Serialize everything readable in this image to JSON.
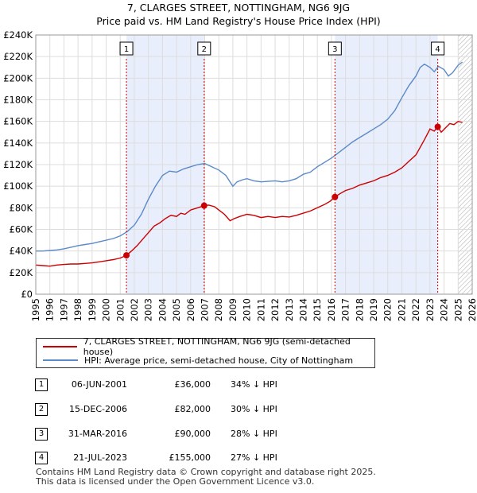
{
  "title": {
    "line1": "7, CLARGES STREET, NOTTINGHAM, NG6 9JG",
    "line2": "Price paid vs. HM Land Registry's House Price Index (HPI)"
  },
  "chart_data": {
    "type": "line",
    "ylim": [
      0,
      240000
    ],
    "xlim": [
      1995,
      2026
    ],
    "y_ticks": [
      0,
      20000,
      40000,
      60000,
      80000,
      100000,
      120000,
      140000,
      160000,
      180000,
      200000,
      220000,
      240000
    ],
    "y_tick_labels": [
      "£0",
      "£20K",
      "£40K",
      "£60K",
      "£80K",
      "£100K",
      "£120K",
      "£140K",
      "£160K",
      "£180K",
      "£200K",
      "£220K",
      "£240K"
    ],
    "x_ticks": [
      1995,
      1996,
      1997,
      1998,
      1999,
      2000,
      2001,
      2002,
      2003,
      2004,
      2005,
      2006,
      2007,
      2008,
      2009,
      2010,
      2011,
      2012,
      2013,
      2014,
      2015,
      2016,
      2017,
      2018,
      2019,
      2020,
      2021,
      2022,
      2023,
      2024,
      2025,
      2026
    ],
    "x_tick_labels": [
      "1995",
      "1996",
      "1997",
      "1998",
      "1999",
      "2000",
      "2001",
      "2002",
      "2003",
      "2004",
      "2005",
      "2006",
      "2007",
      "2008",
      "2009",
      "2010",
      "2011",
      "2012",
      "2013",
      "2014",
      "2015",
      "2016",
      "2017",
      "2018",
      "2019",
      "2020",
      "2021",
      "2022",
      "2023",
      "2024",
      "2025",
      "2026"
    ],
    "series": [
      {
        "name": "7, CLARGES STREET, NOTTINGHAM, NG6 9JG (semi-detached house)",
        "color": "#cc0000",
        "x": [
          1995,
          1995.5,
          1996,
          1996.5,
          1997,
          1997.5,
          1998,
          1998.5,
          1999,
          1999.5,
          2000,
          2000.5,
          2001,
          2001.44,
          2001.8,
          2002.2,
          2002.6,
          2003,
          2003.4,
          2003.8,
          2004.2,
          2004.6,
          2005,
          2005.3,
          2005.6,
          2006,
          2006.5,
          2006.96,
          2007.3,
          2007.7,
          2008,
          2008.4,
          2008.8,
          2009.1,
          2009.5,
          2010,
          2010.5,
          2011,
          2011.5,
          2012,
          2012.5,
          2013,
          2013.5,
          2014,
          2014.5,
          2015,
          2015.5,
          2015.9,
          2016.25,
          2016.6,
          2017,
          2017.5,
          2018,
          2018.5,
          2019,
          2019.5,
          2020,
          2020.5,
          2021,
          2021.5,
          2022,
          2022.3,
          2022.6,
          2023,
          2023.3,
          2023.55,
          2023.8,
          2024.1,
          2024.4,
          2024.7,
          2025,
          2025.3
        ],
        "y": [
          27000,
          26500,
          26000,
          27000,
          27500,
          28000,
          28000,
          28500,
          29000,
          30000,
          31000,
          32000,
          33500,
          36000,
          40000,
          45000,
          51000,
          57000,
          63000,
          66000,
          70000,
          73000,
          72000,
          75000,
          74000,
          78000,
          80000,
          82000,
          82500,
          81000,
          78000,
          74000,
          68000,
          70000,
          72000,
          74000,
          73000,
          71000,
          72000,
          71000,
          72000,
          71500,
          73000,
          75000,
          77000,
          80000,
          83000,
          86000,
          90000,
          93000,
          96000,
          98000,
          101000,
          103000,
          105000,
          108000,
          110000,
          113000,
          117000,
          123000,
          129000,
          136000,
          143000,
          153000,
          151000,
          155000,
          150000,
          154000,
          158000,
          157000,
          160000,
          159000
        ]
      },
      {
        "name": "HPI: Average price, semi-detached house, City of Nottingham",
        "color": "#5b8ac9",
        "x": [
          1995,
          1995.5,
          1996,
          1996.5,
          1997,
          1997.5,
          1998,
          1998.5,
          1999,
          1999.5,
          2000,
          2000.5,
          2001,
          2001.5,
          2002,
          2002.5,
          2003,
          2003.5,
          2004,
          2004.5,
          2005,
          2005.5,
          2006,
          2006.5,
          2007,
          2007.5,
          2008,
          2008.5,
          2009,
          2009.3,
          2009.7,
          2010,
          2010.5,
          2011,
          2011.5,
          2012,
          2012.5,
          2013,
          2013.5,
          2014,
          2014.5,
          2015,
          2015.5,
          2016,
          2016.5,
          2017,
          2017.5,
          2018,
          2018.5,
          2019,
          2019.5,
          2020,
          2020.5,
          2021,
          2021.5,
          2022,
          2022.3,
          2022.6,
          2023,
          2023.3,
          2023.6,
          2024,
          2024.3,
          2024.6,
          2025,
          2025.3
        ],
        "y": [
          40000,
          40000,
          40500,
          41000,
          42000,
          43500,
          45000,
          46000,
          47000,
          48500,
          50000,
          51500,
          54000,
          58000,
          64000,
          74000,
          88000,
          100000,
          110000,
          114000,
          113000,
          116000,
          118000,
          120000,
          121000,
          118000,
          115000,
          110000,
          100000,
          104000,
          106000,
          107000,
          105000,
          104000,
          104500,
          105000,
          104000,
          105000,
          107000,
          111000,
          113000,
          118000,
          122000,
          126000,
          131000,
          136000,
          141000,
          145000,
          149000,
          153000,
          157000,
          162000,
          170000,
          182000,
          193000,
          202000,
          210000,
          213000,
          210000,
          206000,
          211000,
          208000,
          202000,
          205000,
          212000,
          215000
        ]
      }
    ],
    "sales": [
      {
        "label": "1",
        "date": "06-JUN-2001",
        "x": 2001.44,
        "price": 36000,
        "price_label": "£36,000",
        "hpi": "34% ↓ HPI"
      },
      {
        "label": "2",
        "date": "15-DEC-2006",
        "x": 2006.96,
        "price": 82000,
        "price_label": "£82,000",
        "hpi": "30% ↓ HPI"
      },
      {
        "label": "3",
        "date": "31-MAR-2016",
        "x": 2016.25,
        "price": 90000,
        "price_label": "£90,000",
        "hpi": "28% ↓ HPI"
      },
      {
        "label": "4",
        "date": "21-JUL-2023",
        "x": 2023.55,
        "price": 155000,
        "price_label": "£155,000",
        "hpi": "27% ↓ HPI"
      }
    ],
    "shaded_spans": [
      [
        2001.44,
        2006.96
      ],
      [
        2016.25,
        2023.55
      ]
    ],
    "hatched_from": 2025,
    "colors": {
      "shade": "#e8eefb",
      "grid": "#dddddd",
      "marker_line": "#cc0000",
      "hatch": "#aaaaaa"
    }
  },
  "legend": {
    "property": "7, CLARGES STREET, NOTTINGHAM, NG6 9JG (semi-detached house)",
    "hpi": "HPI: Average price, semi-detached house, City of Nottingham"
  },
  "footer": {
    "line1": "Contains HM Land Registry data © Crown copyright and database right 2025.",
    "line2": "This data is licensed under the Open Government Licence v3.0."
  }
}
